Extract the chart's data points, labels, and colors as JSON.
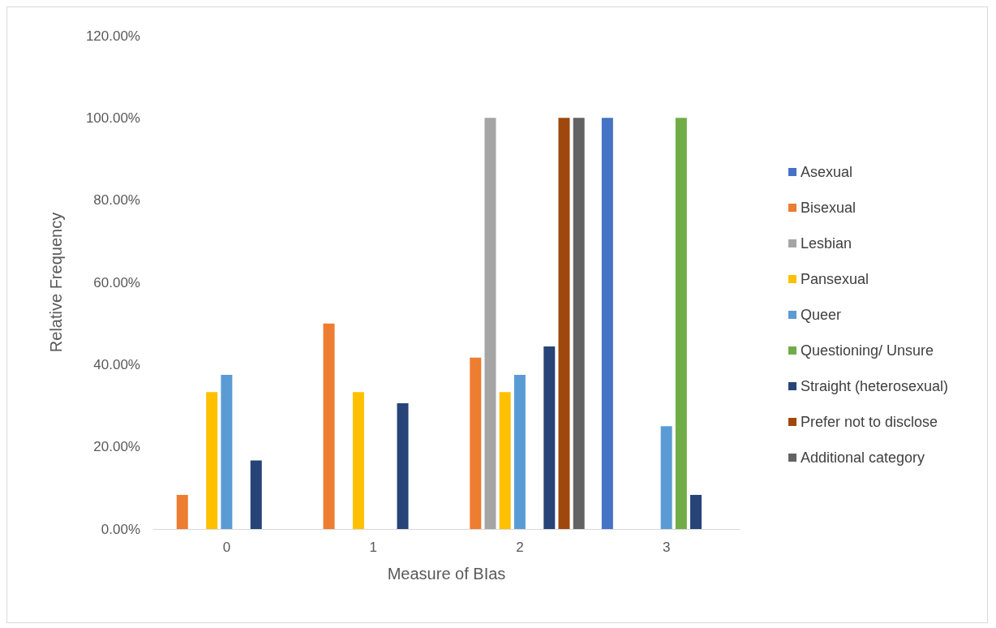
{
  "chart_data": {
    "type": "bar",
    "xlabel": "Measure of BIas",
    "ylabel": "Relative Frequency",
    "categories": [
      "0",
      "1",
      "2",
      "3"
    ],
    "series": [
      {
        "name": "Asexual",
        "color": "#4472c4",
        "values": [
          0,
          0,
          0,
          100
        ]
      },
      {
        "name": "Bisexual",
        "color": "#ed7d31",
        "values": [
          8.3,
          50,
          41.7,
          0
        ]
      },
      {
        "name": "Lesbian",
        "color": "#a5a5a5",
        "values": [
          0,
          0,
          100,
          0
        ]
      },
      {
        "name": "Pansexual",
        "color": "#ffc000",
        "values": [
          33.3,
          33.3,
          33.3,
          0
        ]
      },
      {
        "name": "Queer",
        "color": "#5b9bd5",
        "values": [
          37.5,
          0,
          37.5,
          25
        ]
      },
      {
        "name": "Questioning/ Unsure",
        "color": "#70ad47",
        "values": [
          0,
          0,
          0,
          100
        ]
      },
      {
        "name": "Straight (heterosexual)",
        "color": "#264478",
        "values": [
          16.7,
          30.6,
          44.4,
          8.3
        ]
      },
      {
        "name": "Prefer not to disclose",
        "color": "#9e480e",
        "values": [
          0,
          0,
          100,
          0
        ]
      },
      {
        "name": "Additional category",
        "color": "#636363",
        "values": [
          0,
          0,
          100,
          0
        ]
      }
    ],
    "ylim": [
      0,
      120
    ],
    "yticks": [
      {
        "value": 0,
        "label": "0.00%"
      },
      {
        "value": 20,
        "label": "20.00%"
      },
      {
        "value": 40,
        "label": "40.00%"
      },
      {
        "value": 60,
        "label": "60.00%"
      },
      {
        "value": 80,
        "label": "80.00%"
      },
      {
        "value": 100,
        "label": "100.00%"
      },
      {
        "value": 120,
        "label": "120.00%"
      }
    ],
    "grid": false,
    "legend": "right"
  }
}
